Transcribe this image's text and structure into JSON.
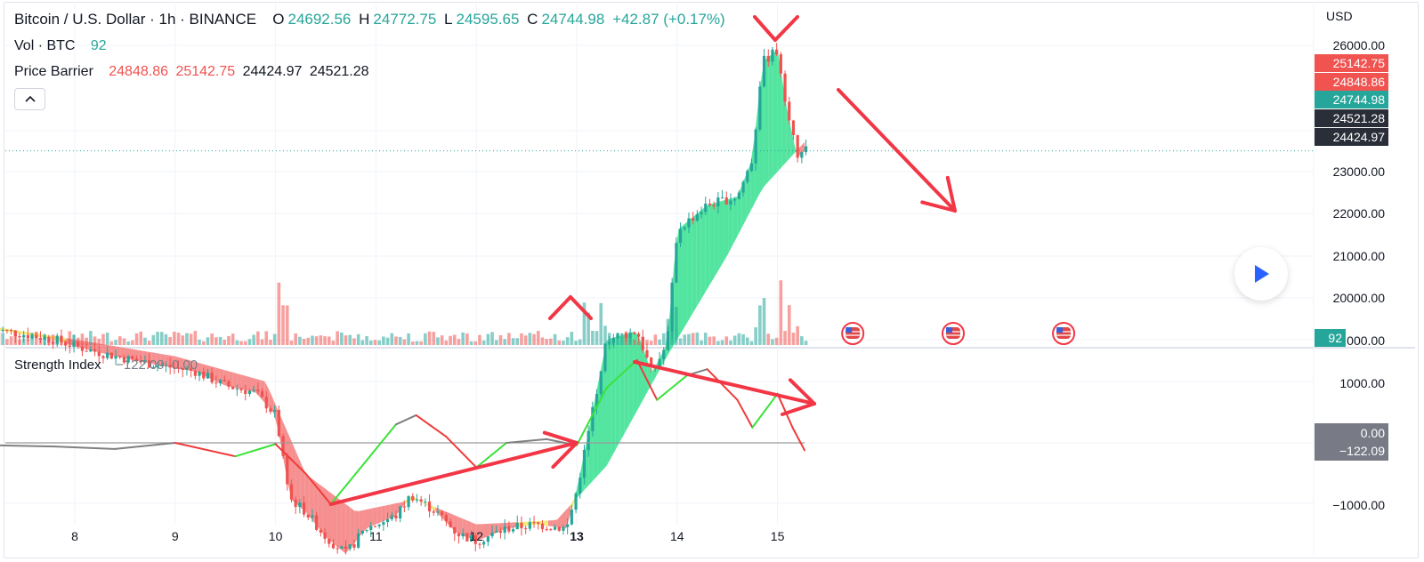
{
  "header": {
    "symbol": "Bitcoin / U.S. Dollar · 1h · BINANCE",
    "o_label": "O",
    "o_value": "24692.56",
    "h_label": "H",
    "h_value": "24772.75",
    "l_label": "L",
    "l_value": "24595.65",
    "c_label": "C",
    "c_value": "24744.98",
    "change": "+42.87 (+0.17%)"
  },
  "volume_legend": {
    "label": "Vol · BTC",
    "value": "92"
  },
  "price_barrier": {
    "label": "Price Barrier",
    "v1": "24848.86",
    "v2": "25142.75",
    "v3": "24424.97",
    "v4": "24521.28"
  },
  "strength_index": {
    "label": "Strength Index",
    "v1": "−122.09",
    "v2": "0.00"
  },
  "colors": {
    "up": "#26a69a",
    "down": "#ef5350",
    "band_green": "#35e08f",
    "band_red": "#f47c7c",
    "band_yellow": "#f5e663",
    "annotation": "#f23645",
    "price_line": "#26a69a",
    "dark_label": "#2a2e39",
    "gray_label": "#787b86",
    "accent": "#2962ff"
  },
  "icons": {
    "collapse": "chevron-up-icon",
    "play": "play-icon",
    "event": "us-flag-icon"
  },
  "chart_data": {
    "type": "candlestick",
    "currency": "USD",
    "x_ticks": [
      "8",
      "9",
      "10",
      "11",
      "12",
      "13",
      "14",
      "15"
    ],
    "x_tick_bold": [
      false,
      false,
      false,
      false,
      false,
      true,
      false,
      false
    ],
    "price_axis_ticks": [
      "26000.00",
      "23000.00",
      "22000.00",
      "21000.00",
      "20000.00"
    ],
    "volume_axis_tick": "000.00",
    "strength_axis_ticks": [
      "1000.00",
      "−1000.00"
    ],
    "ylim": [
      19500,
      26300
    ],
    "price_labels": [
      {
        "text": "25142.75",
        "value": 25142.75,
        "style": "red"
      },
      {
        "text": "24848.86",
        "value": 24848.86,
        "style": "red"
      },
      {
        "text": "24744.98",
        "value": 24744.98,
        "style": "green"
      },
      {
        "text": "24521.28",
        "value": 24521.28,
        "style": "dark"
      },
      {
        "text": "24424.97",
        "value": 24424.97,
        "style": "dark"
      }
    ],
    "volume_label": "92",
    "strength_labels": [
      "0.00",
      "−122.09"
    ],
    "strength_ylim": [
      -1000,
      1400
    ],
    "price_path": [
      [
        7.2,
        22620
      ],
      [
        7.5,
        22560
      ],
      [
        7.8,
        22500
      ],
      [
        8.0,
        22420
      ],
      [
        8.3,
        22330
      ],
      [
        8.6,
        22250
      ],
      [
        8.9,
        22180
      ],
      [
        9.2,
        22120
      ],
      [
        9.5,
        21950
      ],
      [
        9.8,
        21870
      ],
      [
        10.0,
        21600
      ],
      [
        10.15,
        20600
      ],
      [
        10.3,
        20450
      ],
      [
        10.5,
        20150
      ],
      [
        10.7,
        19950
      ],
      [
        10.9,
        20250
      ],
      [
        11.2,
        20400
      ],
      [
        11.35,
        20650
      ],
      [
        11.6,
        20450
      ],
      [
        11.8,
        20200
      ],
      [
        12.0,
        20100
      ],
      [
        12.3,
        20250
      ],
      [
        12.6,
        20300
      ],
      [
        12.9,
        20250
      ],
      [
        13.0,
        20700
      ],
      [
        13.15,
        21600
      ],
      [
        13.3,
        22500
      ],
      [
        13.6,
        22600
      ],
      [
        13.75,
        22100
      ],
      [
        13.9,
        22450
      ],
      [
        14.0,
        23800
      ],
      [
        14.3,
        24100
      ],
      [
        14.6,
        24200
      ],
      [
        14.75,
        24650
      ],
      [
        14.85,
        25800
      ],
      [
        15.0,
        25950
      ],
      [
        15.1,
        25200
      ],
      [
        15.2,
        24650
      ],
      [
        15.27,
        24745
      ]
    ],
    "barrier_band_start": [
      [
        7.2,
        22650
      ],
      [
        8.0,
        22500
      ],
      [
        9.0,
        22300
      ],
      [
        9.9,
        22000
      ],
      [
        10.3,
        20900
      ],
      [
        10.8,
        20450
      ],
      [
        11.4,
        20600
      ],
      [
        12.0,
        20300
      ],
      [
        12.8,
        20350
      ],
      [
        13.3,
        21000
      ],
      [
        13.9,
        22300
      ],
      [
        14.5,
        23500
      ],
      [
        14.85,
        24300
      ],
      [
        15.27,
        24850
      ]
    ],
    "strength_series": [
      [
        7.2,
        -40
      ],
      [
        7.8,
        -60
      ],
      [
        8.4,
        -100
      ],
      [
        9.0,
        0
      ],
      [
        9.6,
        -220
      ],
      [
        10.0,
        -20
      ],
      [
        10.3,
        -500
      ],
      [
        10.55,
        -1000
      ],
      [
        10.9,
        -300
      ],
      [
        11.2,
        300
      ],
      [
        11.4,
        450
      ],
      [
        11.7,
        100
      ],
      [
        12.0,
        -400
      ],
      [
        12.3,
        0
      ],
      [
        12.7,
        60
      ],
      [
        13.0,
        -40
      ],
      [
        13.3,
        900
      ],
      [
        13.6,
        1350
      ],
      [
        13.8,
        700
      ],
      [
        14.1,
        1100
      ],
      [
        14.3,
        1200
      ],
      [
        14.6,
        700
      ],
      [
        14.75,
        250
      ],
      [
        15.0,
        800
      ],
      [
        15.15,
        250
      ],
      [
        15.27,
        -122
      ]
    ],
    "arrows": [
      {
        "from": [
          15.0,
          26300
        ],
        "to": [
          14.95,
          26100
        ]
      },
      {
        "from": [
          12.95,
          19750
        ],
        "to": [
          12.95,
          20250
        ]
      },
      {
        "from": [
          15.6,
          24900
        ],
        "to": [
          16.7,
          22050
        ]
      }
    ],
    "strength_arrows": [
      {
        "from": [
          10.55,
          -1000
        ],
        "to": [
          13.0,
          0
        ]
      },
      {
        "from": [
          13.6,
          1350
        ],
        "to": [
          15.4,
          700
        ]
      }
    ],
    "event_days": [
      15.75,
      16.75,
      17.85
    ]
  }
}
